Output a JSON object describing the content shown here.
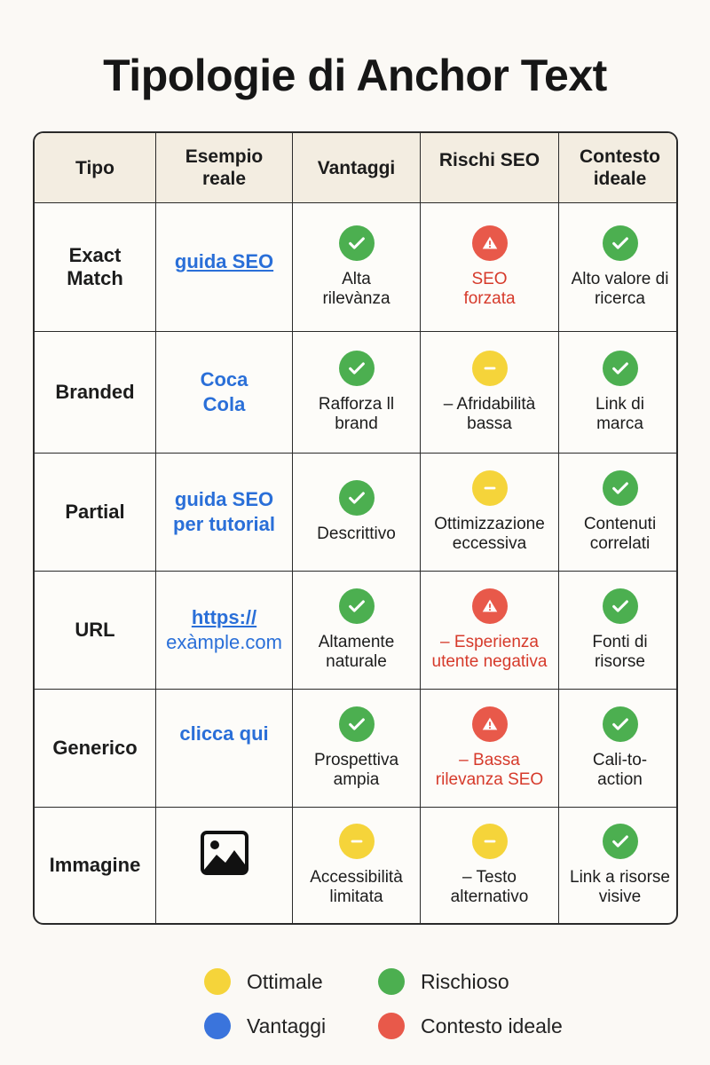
{
  "title": "Tipologie di Anchor Text",
  "headers": [
    "Tipo",
    "Esempio reale",
    "Vantaggi",
    "Rischi SEO",
    "Contesto ideale"
  ],
  "rows": [
    {
      "type": "Exact Match",
      "example": "guida SEO",
      "advantage": {
        "icon": "check-icon",
        "text": "Alta rilevànza"
      },
      "risk": {
        "icon": "warning-icon",
        "text": "SEO forzata"
      },
      "context": {
        "icon": "check-icon",
        "text": "Alto valore di ricerca"
      }
    },
    {
      "type": "Branded",
      "example": "Coca Cola",
      "advantage": {
        "icon": "check-icon",
        "text": "Rafforza ll brand"
      },
      "risk": {
        "icon": "minus-icon",
        "text": "– Afridabilità bassa"
      },
      "context": {
        "icon": "check-icon",
        "text": "Link di marca"
      }
    },
    {
      "type": "Partial",
      "example": "guida SEO per tutorial",
      "advantage": {
        "icon": "check-icon",
        "text": "Descrittivo"
      },
      "risk": {
        "icon": "minus-icon",
        "text": "Ottimizzazione eccessiva"
      },
      "context": {
        "icon": "check-icon",
        "text": "Contenuti correlati"
      }
    },
    {
      "type": "URL",
      "example_line1": "https://",
      "example_line2": "exàmple.com",
      "advantage": {
        "icon": "check-icon",
        "text": "Altamente naturale"
      },
      "risk": {
        "icon": "warning-icon",
        "text": "– Esperienza utente negativa"
      },
      "context": {
        "icon": "check-icon",
        "text": "Fonti di risorse"
      }
    },
    {
      "type": "Generico",
      "example": "clicca qui",
      "advantage": {
        "icon": "check-icon",
        "text": "Prospettiva ampia"
      },
      "risk": {
        "icon": "warning-icon",
        "text": "– Bassa rilevanza SEO"
      },
      "context": {
        "icon": "check-icon",
        "text": "Cali-to- action"
      }
    },
    {
      "type": "Immagine",
      "example_icon": "image-icon",
      "advantage": {
        "icon": "minus-icon",
        "text": "Accessibilità limitata"
      },
      "risk": {
        "icon": "minus-icon",
        "text": "– Testo alternativo"
      },
      "context": {
        "icon": "check-icon",
        "text": "Link a risorse visive"
      }
    }
  ],
  "legend": [
    {
      "color": "#f5d43a",
      "label": "Ottimale"
    },
    {
      "color": "#4caf50",
      "label": "Rischioso"
    },
    {
      "color": "#3a74dc",
      "label": "Vantaggi"
    },
    {
      "color": "#e8594a",
      "label": "Contesto ideale"
    }
  ],
  "colors": {
    "check": "#4caf50",
    "warning": "#e8594a",
    "neutral": "#f5d43a",
    "link": "#2a6fd8",
    "risk_text": "#d63a2b"
  }
}
